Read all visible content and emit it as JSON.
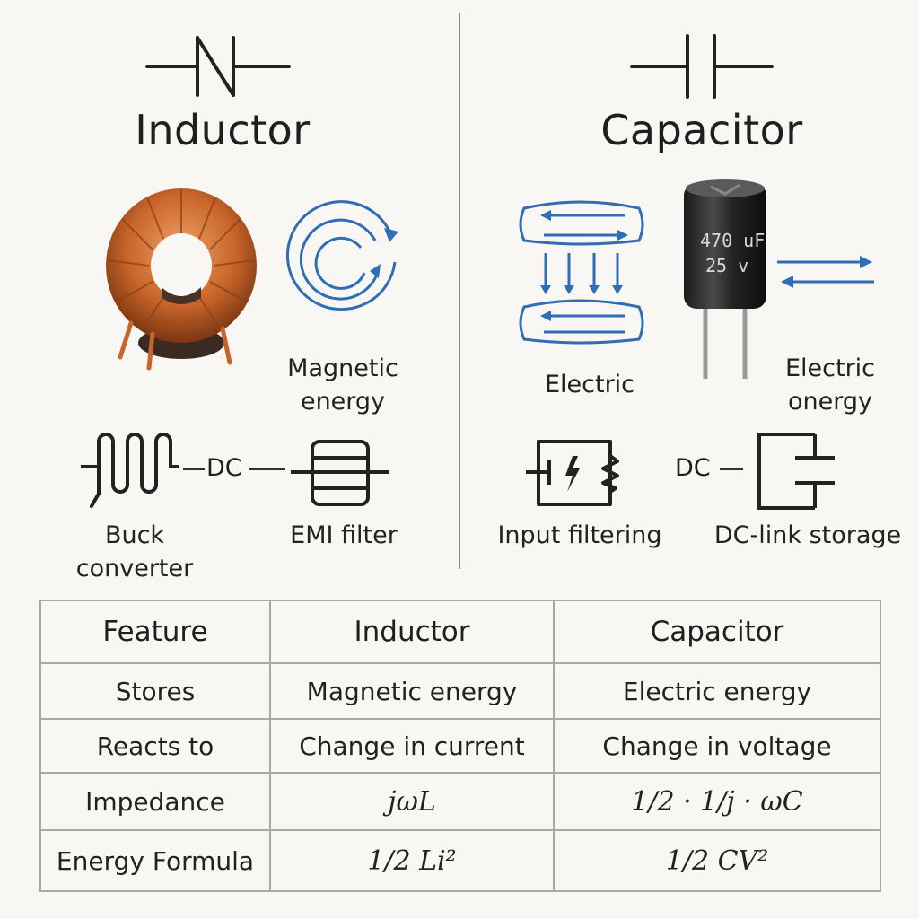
{
  "inductor": {
    "title": "Inductor",
    "magnetic_label": "Magnetic energy",
    "dc_label": "DC",
    "buck_label": "Buck converter",
    "emi_label": "EMI filter"
  },
  "capacitor": {
    "title": "Capacitor",
    "cap_marking_line1": "470 uF",
    "cap_marking_line2": "25 v",
    "electric_label": "Electric",
    "electric_energy_label": "Electric onergy",
    "dc_label": "DC",
    "input_filtering_label": "Input filtering",
    "dc_link_label": "DC-link storage"
  },
  "table": {
    "headers": [
      "Feature",
      "Inductor",
      "Capacitor"
    ],
    "rows": [
      {
        "feature": "Stores",
        "inductor": "Magnetic energy",
        "capacitor": "Electric energy"
      },
      {
        "feature": "Reacts to",
        "inductor": "Change in current",
        "capacitor": "Change in voltage"
      },
      {
        "feature": "Impedance",
        "inductor": "jωL",
        "capacitor": "1/2 · 1/j · ωC"
      },
      {
        "feature": "Energy Formula",
        "inductor": "1/2 Li²",
        "capacitor": "1/2 CV²"
      }
    ]
  },
  "colors": {
    "accent_blue": "#2f6db5",
    "copper": "#c8652a",
    "ink": "#1f1f1f"
  }
}
